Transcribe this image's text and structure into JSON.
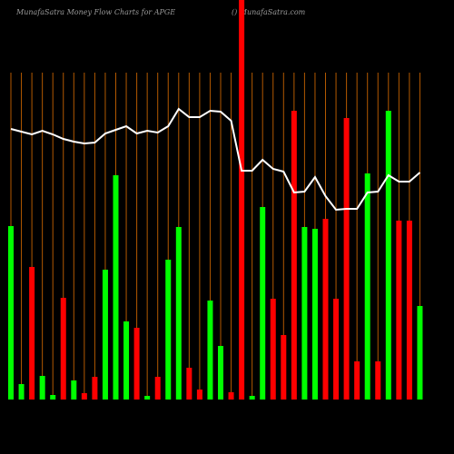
{
  "chart_data": {
    "type": "bar-line",
    "title": "MunafaSatra  Money Flow  Charts for APGE",
    "subtitle": "() MunafaSatra.com",
    "categories": [
      null,
      null,
      null,
      null,
      null,
      null,
      null,
      null,
      null,
      null,
      null,
      null,
      null,
      null,
      null,
      null,
      null,
      null,
      null,
      null,
      null,
      null,
      null,
      null,
      null,
      null,
      null,
      null,
      null,
      null,
      null,
      null,
      null,
      null,
      null,
      null,
      null,
      null,
      null,
      null
    ],
    "ylim": [
      0,
      440
    ],
    "grid": true,
    "grid_color": "#b35900",
    "series": [
      {
        "type": "bar",
        "values": [
          191,
          17,
          146,
          26,
          5,
          112,
          21,
          7,
          25,
          143,
          247,
          86,
          79,
          4,
          25,
          154,
          190,
          35,
          11,
          109,
          59,
          8,
          440,
          4,
          212,
          111,
          71,
          318,
          190,
          188,
          199,
          111,
          310,
          42,
          249,
          42,
          318,
          197,
          197,
          103
        ],
        "colors": [
          "#00ff00",
          "#00ff00",
          "#ff0000",
          "#00ff00",
          "#00ff00",
          "#ff0000",
          "#00ff00",
          "#ff0000",
          "#ff0000",
          "#00ff00",
          "#00ff00",
          "#00ff00",
          "#ff0000",
          "#00ff00",
          "#ff0000",
          "#00ff00",
          "#00ff00",
          "#ff0000",
          "#ff0000",
          "#00ff00",
          "#00ff00",
          "#ff0000",
          "#ff0000",
          "#00ff00",
          "#00ff00",
          "#ff0000",
          "#ff0000",
          "#ff0000",
          "#00ff00",
          "#00ff00",
          "#ff0000",
          "#ff0000",
          "#ff0000",
          "#ff0000",
          "#00ff00",
          "#ff0000",
          "#00ff00",
          "#ff0000",
          "#ff0000",
          "#00ff00"
        ]
      },
      {
        "type": "line",
        "color": "#ffffff",
        "values": [
          298,
          295,
          292,
          296,
          292,
          287,
          284,
          282,
          283,
          293,
          297,
          301,
          293,
          296,
          294,
          301,
          320,
          311,
          311,
          318,
          317,
          307,
          252,
          252,
          264,
          254,
          251,
          228,
          229,
          245,
          224,
          209,
          210,
          210,
          228,
          229,
          247,
          240,
          240,
          250
        ]
      }
    ]
  }
}
